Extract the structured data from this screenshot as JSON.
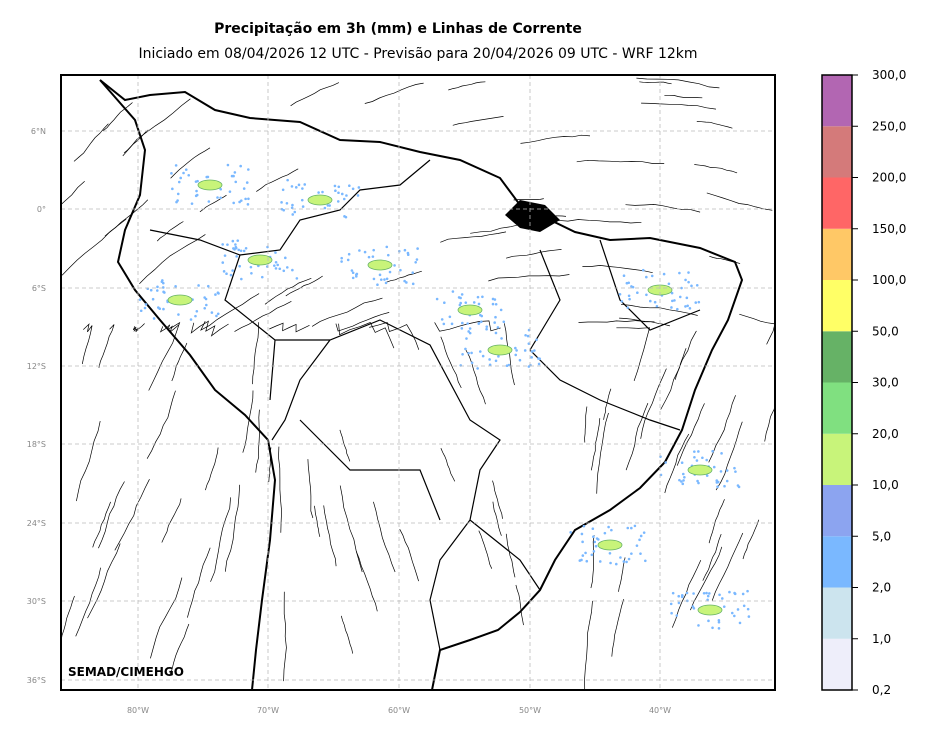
{
  "header": {
    "title": "Precipitação em 3h (mm) e Linhas de Corrente",
    "subtitle": "Iniciado em 08/04/2026 12 UTC - Previsão para 20/04/2026 09 UTC - WRF 12km"
  },
  "map": {
    "lat_labels": [
      "6°N",
      "0°",
      "6°S",
      "12°S",
      "18°S",
      "24°S",
      "30°S",
      "36°S"
    ],
    "lon_labels": [
      "80°W",
      "70°W",
      "60°W",
      "50°W",
      "40°W"
    ],
    "credit": "SEMAD/CIMEHGO"
  },
  "colorbar": {
    "levels": [
      "0,2",
      "1,0",
      "2,0",
      "5,0",
      "10,0",
      "20,0",
      "30,0",
      "50,0",
      "100,0",
      "150,0",
      "200,0",
      "250,0",
      "300,0"
    ],
    "colors": [
      "#eeeefa",
      "#cce4ee",
      "#7ab8ff",
      "#8ca4f0",
      "#c8f47a",
      "#80e080",
      "#66b266",
      "#ffff66",
      "#ffc866",
      "#ff6666",
      "#d47a7a",
      "#b266b2"
    ]
  }
}
